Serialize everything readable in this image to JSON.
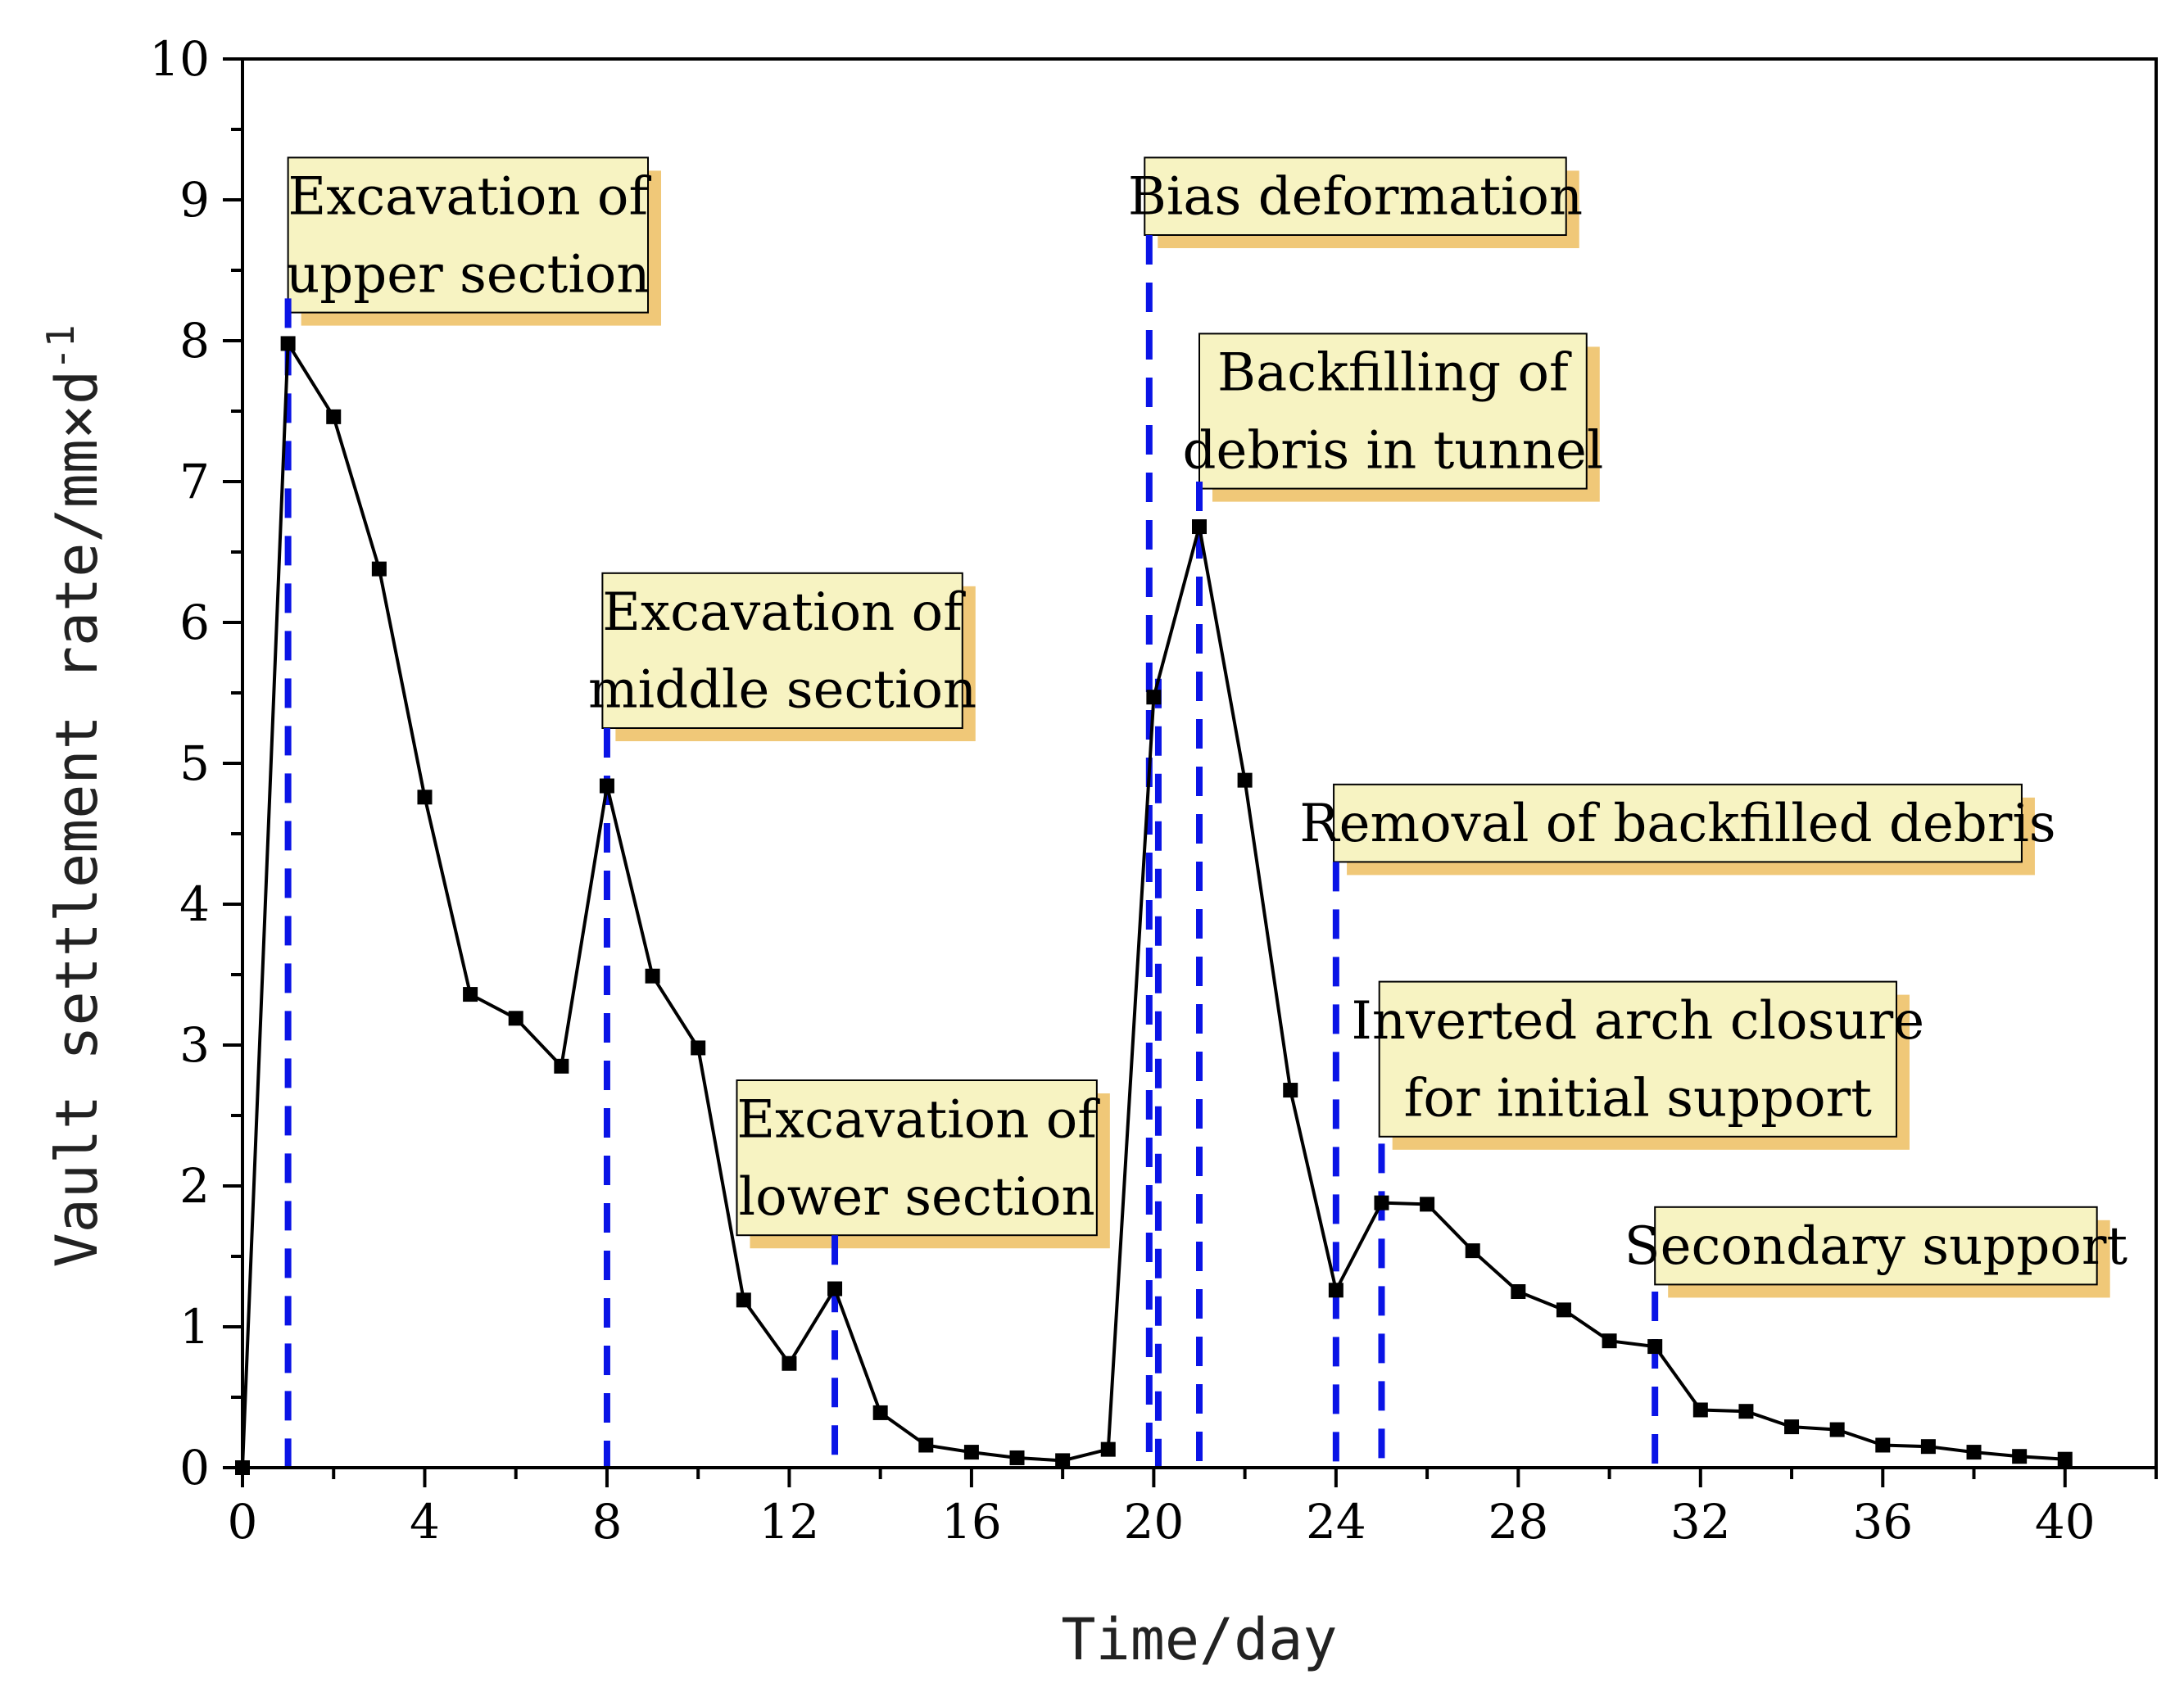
{
  "chart_data": {
    "type": "line",
    "title": "",
    "xlabel": "Time/day",
    "ylabel": "Vault settlement rate/mm×d",
    "ylabel_superscript": "-1",
    "xlim": [
      0,
      42
    ],
    "ylim": [
      0,
      10
    ],
    "xticks": [
      0,
      4,
      8,
      12,
      16,
      20,
      24,
      28,
      32,
      36,
      40
    ],
    "yticks": [
      0,
      1,
      2,
      3,
      4,
      5,
      6,
      7,
      8,
      9,
      10
    ],
    "grid": false,
    "colors": {
      "line": "#000000",
      "marker": "#000000",
      "event_line": "#0a14e6",
      "box_fill": "#f7f3c2",
      "box_shadow": "#f0c878",
      "box_border": "#000000"
    },
    "series": [
      {
        "name": "Vault settlement rate",
        "x": [
          0,
          1,
          2,
          3,
          4,
          5,
          6,
          7,
          8,
          9,
          10,
          11,
          12,
          13,
          14,
          15,
          16,
          17,
          18,
          19,
          20,
          21,
          22,
          23,
          24,
          25,
          26,
          27,
          28,
          29,
          30,
          31,
          32,
          33,
          34,
          35,
          36,
          37,
          38,
          39,
          40
        ],
        "y": [
          0.0,
          7.98,
          7.46,
          6.38,
          4.76,
          3.36,
          3.19,
          2.85,
          4.84,
          3.49,
          2.98,
          1.19,
          0.74,
          1.27,
          0.39,
          0.16,
          0.11,
          0.07,
          0.05,
          0.13,
          5.47,
          6.68,
          4.88,
          2.68,
          1.26,
          1.88,
          1.87,
          1.54,
          1.25,
          1.12,
          0.9,
          0.86,
          0.41,
          0.4,
          0.29,
          0.27,
          0.16,
          0.15,
          0.11,
          0.08,
          0.06
        ]
      }
    ],
    "event_lines": [
      {
        "x": 1.0,
        "y_top": 8.3
      },
      {
        "x": 8.0,
        "y_top": 5.25
      },
      {
        "x": 13.0,
        "y_top": 1.65
      },
      {
        "x": 19.9,
        "y_top": 8.75
      },
      {
        "x": 20.1,
        "y_top": 5.6
      },
      {
        "x": 21.0,
        "y_top": 7.0
      },
      {
        "x": 24.0,
        "y_top": 4.3
      },
      {
        "x": 25.0,
        "y_top": 2.3
      },
      {
        "x": 31.0,
        "y_top": 1.25
      }
    ],
    "annotations": [
      {
        "lines": [
          "Excavation of",
          "upper section"
        ],
        "x0": 1.0,
        "x1": 8.9,
        "y_top": 9.3,
        "y_bottom": 8.2
      },
      {
        "lines": [
          "Excavation of",
          "middle section"
        ],
        "x0": 7.9,
        "x1": 15.8,
        "y_top": 6.35,
        "y_bottom": 5.25
      },
      {
        "lines": [
          "Excavation of",
          "lower section"
        ],
        "x0": 10.85,
        "x1": 18.75,
        "y_top": 2.75,
        "y_bottom": 1.65
      },
      {
        "lines": [
          "Bias deformation"
        ],
        "x0": 19.8,
        "x1": 29.05,
        "y_top": 9.3,
        "y_bottom": 8.75
      },
      {
        "lines": [
          "Backfilling of",
          "debris in  tunnel"
        ],
        "x0": 21.0,
        "x1": 29.5,
        "y_top": 8.05,
        "y_bottom": 6.95
      },
      {
        "lines": [
          "Removal of backfilled debris"
        ],
        "x0": 23.95,
        "x1": 39.05,
        "y_top": 4.85,
        "y_bottom": 4.3
      },
      {
        "lines": [
          "Inverted arch closure",
          "for initial support"
        ],
        "x0": 24.95,
        "x1": 36.3,
        "y_top": 3.45,
        "y_bottom": 2.35
      },
      {
        "lines": [
          "Secondary support"
        ],
        "x0": 31.0,
        "x1": 40.7,
        "y_top": 1.85,
        "y_bottom": 1.3
      }
    ]
  }
}
